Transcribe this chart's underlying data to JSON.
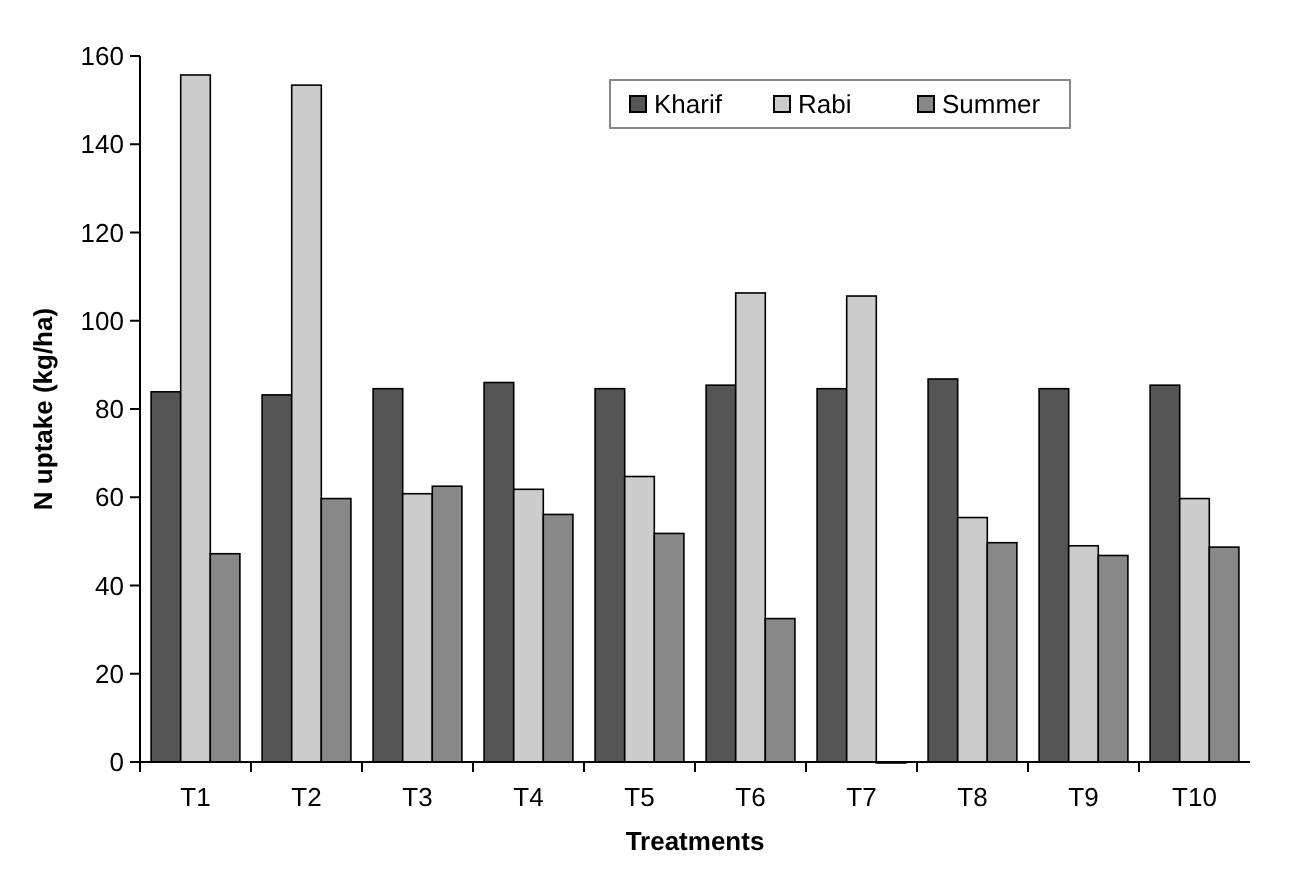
{
  "chart_data": {
    "type": "bar",
    "xlabel": "Treatments",
    "ylabel": "N uptake (kg/ha)",
    "categories": [
      "T1",
      "T2",
      "T3",
      "T4",
      "T5",
      "T6",
      "T7",
      "T8",
      "T9",
      "T10"
    ],
    "series": [
      {
        "name": "Kharif",
        "color": "#555555",
        "values": [
          83.9,
          83.2,
          84.6,
          86,
          84.6,
          85.4,
          84.6,
          86.8,
          84.6,
          85.4
        ]
      },
      {
        "name": "Rabi",
        "color": "#cccccc",
        "values": [
          155.7,
          153.4,
          60.8,
          61.8,
          64.7,
          106.3,
          105.6,
          55.4,
          49,
          59.7
        ]
      },
      {
        "name": "Summer",
        "color": "#888888",
        "values": [
          47.2,
          59.7,
          62.5,
          56.1,
          51.8,
          32.5,
          0,
          49.7,
          46.8,
          48.7
        ]
      }
    ],
    "ylim": [
      0,
      160
    ],
    "yticks": [
      0,
      20,
      40,
      60,
      80,
      100,
      120,
      140,
      160
    ],
    "grid": false,
    "legend": "top right"
  }
}
